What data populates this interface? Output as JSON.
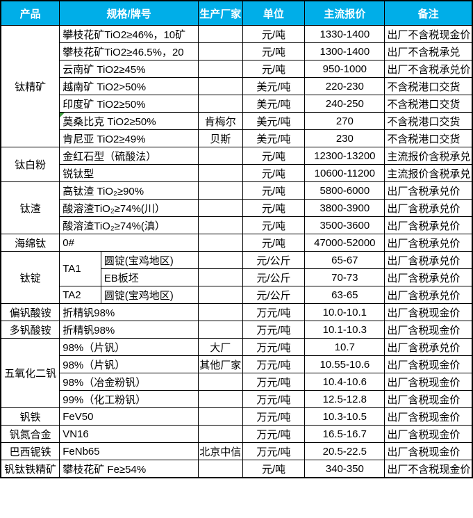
{
  "colors": {
    "header_bg": "#00AEE8",
    "header_text": "#FFFFFF",
    "grid": "#000000",
    "marker_green": "#3E9B3E",
    "body_text": "#000000"
  },
  "table": {
    "header": {
      "columns": [
        {
          "key": "product",
          "label": "产品"
        },
        {
          "key": "spec",
          "label": "规格/牌号"
        },
        {
          "key": "maker",
          "label": "生产厂家"
        },
        {
          "key": "unit",
          "label": "单位"
        },
        {
          "key": "price",
          "label": "主流报价"
        },
        {
          "key": "note",
          "label": "备注"
        }
      ]
    },
    "groups": [
      {
        "product": "钛精矿",
        "rows": [
          {
            "spec": "攀枝花矿TiO2≥46%，10矿",
            "maker": "",
            "unit": "元/吨",
            "price": "1330-1400",
            "note": "出厂不含税现金价"
          },
          {
            "spec": "攀枝花矿TiO2≥46.5%，20",
            "maker": "",
            "unit": "元/吨",
            "price": "1300-1400",
            "note": "出厂不含税承兑"
          },
          {
            "spec": "云南矿 TiO2≥45%",
            "maker": "",
            "unit": "元/吨",
            "price": "950-1000",
            "note": "出厂不含税承兑价"
          },
          {
            "spec": "越南矿 TiO2>50%",
            "maker": "",
            "unit": "美元/吨",
            "price": "220-230",
            "note": "不含税港口交货"
          },
          {
            "spec": "印度矿 TiO2≥50%",
            "maker": "",
            "unit": "美元/吨",
            "price": "240-250",
            "note": "不含税港口交货"
          },
          {
            "spec": "莫桑比克 TiO2≥50%",
            "marker": true,
            "maker": "肯梅尔",
            "unit": "美元/吨",
            "price": "270",
            "note": "不含税港口交货"
          },
          {
            "spec": "肯尼亚 TiO2≥49%",
            "maker": "贝斯",
            "unit": "美元/吨",
            "price": "230",
            "note": "不含税港口交货"
          }
        ]
      },
      {
        "product": "钛白粉",
        "rows": [
          {
            "spec": "金红石型（硫酸法）",
            "maker": "",
            "unit": "元/吨",
            "price": "12300-13200",
            "note": "主流报价含税承兑"
          },
          {
            "spec": "锐钛型",
            "maker": "",
            "unit": "元/吨",
            "price": "10600-11200",
            "note": "主流报价含税承兑"
          }
        ]
      },
      {
        "product": "钛渣",
        "rows": [
          {
            "spec": "高钛渣 TiO₂≥90%",
            "maker": "",
            "unit": "元/吨",
            "price": "5800-6000",
            "note": "出厂含税承兑价"
          },
          {
            "spec": "酸溶渣TiO₂≥74%(川）",
            "maker": "",
            "unit": "元/吨",
            "price": "3800-3900",
            "note": "出厂含税承兑价"
          },
          {
            "spec": "酸溶渣TiO₂≥74%(滇）",
            "maker": "",
            "unit": "元/吨",
            "price": "3500-3600",
            "note": "出厂含税承兑价"
          }
        ]
      },
      {
        "product": "海绵钛",
        "rows": [
          {
            "spec": "0#",
            "maker": "",
            "unit": "元/吨",
            "price": "47000-52000",
            "note": "出厂含税承兑价"
          }
        ]
      },
      {
        "product": "钛锭",
        "rows": [
          {
            "grade": "TA1",
            "grade_rows": 2,
            "spec2": "圆锭(宝鸡地区)",
            "maker": "",
            "unit": "元/公斤",
            "price": "65-67",
            "note": "出厂含税承兑价"
          },
          {
            "spec2": "EB板坯",
            "maker": "",
            "unit": "元/公斤",
            "price": "70-73",
            "note": "出厂含税承兑价"
          },
          {
            "grade": "TA2",
            "grade_rows": 1,
            "spec2": "圆锭(宝鸡地区)",
            "maker": "",
            "unit": "元/公斤",
            "price": "63-65",
            "note": "出厂含税承兑价"
          }
        ]
      },
      {
        "product": "偏钒酸铵",
        "rows": [
          {
            "spec": "折精钒98%",
            "maker": "",
            "unit": "万元/吨",
            "price": "10.0-10.1",
            "note": "出厂含税现金价"
          }
        ]
      },
      {
        "product": "多钒酸铵",
        "rows": [
          {
            "spec": "折精钒98%",
            "maker": "",
            "unit": "万元/吨",
            "price": "10.1-10.3",
            "note": "出厂含税现金价"
          }
        ]
      },
      {
        "product": "五氧化二钒",
        "rows": [
          {
            "spec": "98%（片钒）",
            "maker": "大厂",
            "unit": "万元/吨",
            "price": "10.7",
            "note": "出厂含税承兑价"
          },
          {
            "spec": "98%（片钒）",
            "maker": "其他厂家",
            "unit": "万元/吨",
            "price": "10.55-10.6",
            "note": "出厂含税现金价"
          },
          {
            "spec": "98%（冶金粉钒）",
            "maker": "",
            "unit": "万元/吨",
            "price": "10.4-10.6",
            "note": "出厂含税现金价"
          },
          {
            "spec": "99%（化工粉钒）",
            "maker": "",
            "unit": "万元/吨",
            "price": "12.5-12.8",
            "note": "出厂含税现金价"
          }
        ]
      },
      {
        "product": "钒铁",
        "rows": [
          {
            "spec": "FeV50",
            "maker": "",
            "unit": "万元/吨",
            "price": "10.3-10.5",
            "note": "出厂含税现金价"
          }
        ]
      },
      {
        "product": "钒氮合金",
        "rows": [
          {
            "spec": "VN16",
            "maker": "",
            "unit": "万元/吨",
            "price": "16.5-16.7",
            "note": "出厂含税现金价"
          }
        ]
      },
      {
        "product": "巴西铌铁",
        "rows": [
          {
            "spec": "FeNb65",
            "maker": "北京中信",
            "unit": "万元/吨",
            "price": "20.5-22.5",
            "note": "出厂含税现金价"
          }
        ]
      },
      {
        "product": "钒钛铁精矿",
        "rows": [
          {
            "spec": "攀枝花矿 Fe≥54%",
            "maker": "",
            "unit": "元/吨",
            "price": "340-350",
            "note": "出厂不含税现金价"
          }
        ]
      }
    ]
  }
}
